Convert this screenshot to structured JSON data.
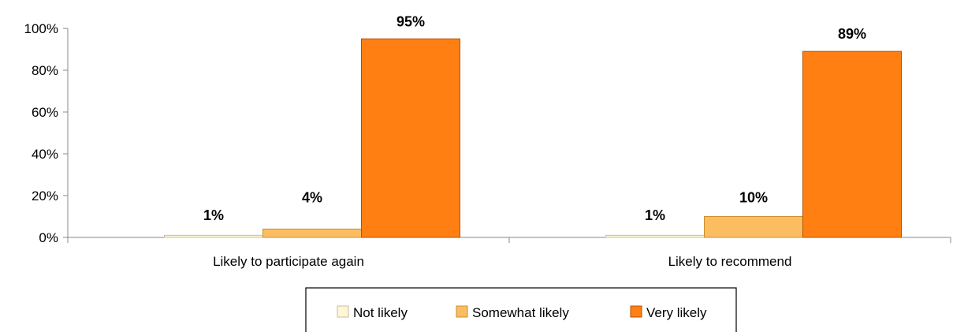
{
  "chart_data": {
    "type": "bar",
    "categories": [
      "Likely to participate again",
      "Likely to recommend"
    ],
    "series": [
      {
        "name": "Not likely",
        "values": [
          1,
          1
        ],
        "labels": [
          "1%",
          "1%"
        ],
        "color": "#FFF6D8",
        "stroke": "#C9BE9A"
      },
      {
        "name": "Somewhat likely",
        "values": [
          4,
          10
        ],
        "labels": [
          "4%",
          "10%"
        ],
        "color": "#FCBD60",
        "stroke": "#C9902F"
      },
      {
        "name": "Very likely",
        "values": [
          95,
          89
        ],
        "labels": [
          "95%",
          "89%"
        ],
        "color": "#FF7F13",
        "stroke": "#B85200"
      }
    ],
    "yticks": [
      0,
      20,
      40,
      60,
      80,
      100
    ],
    "ytick_labels": [
      "0%",
      "20%",
      "40%",
      "60%",
      "80%",
      "100%"
    ],
    "ylim": [
      0,
      100
    ],
    "grid": false,
    "legend_position": "bottom"
  }
}
